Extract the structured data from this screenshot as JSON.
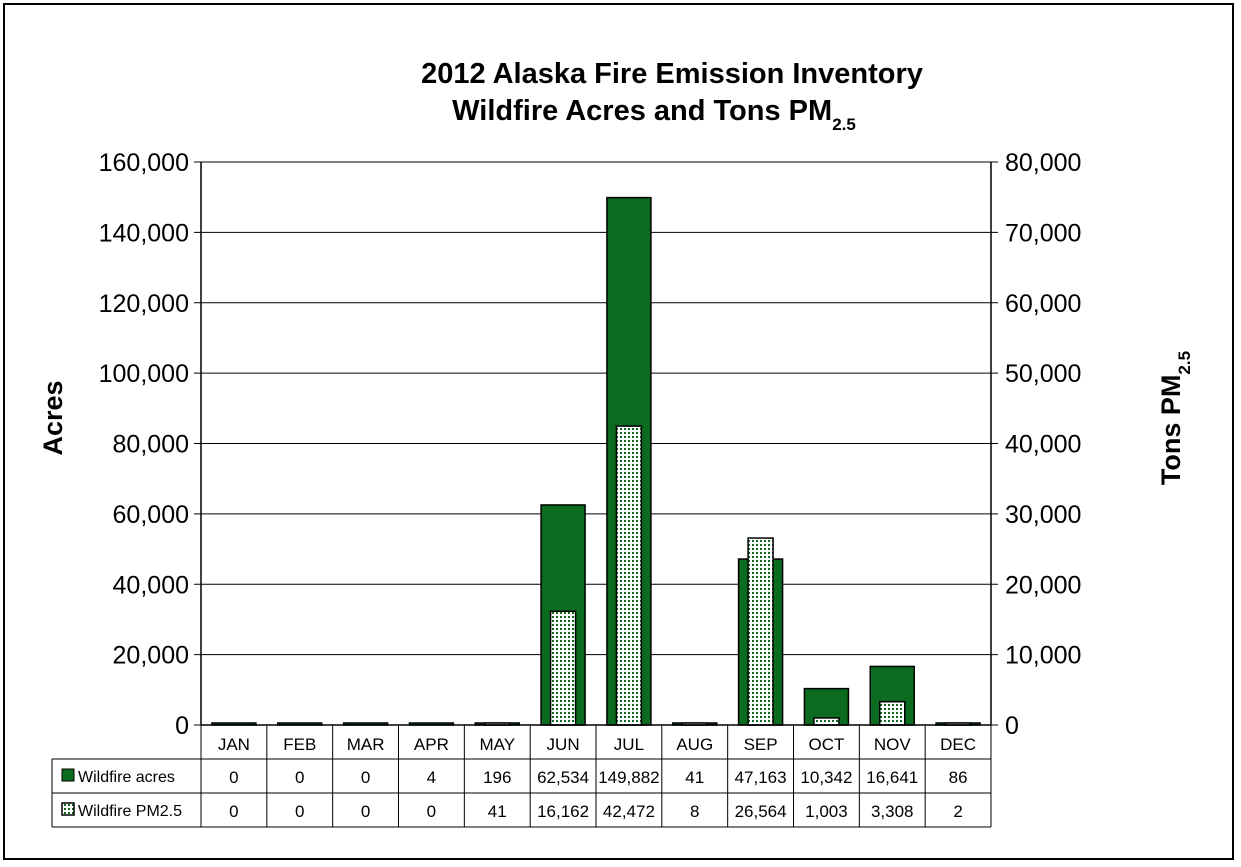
{
  "chart_data": {
    "type": "bar",
    "title_line1": "2012 Alaska Fire Emission Inventory",
    "title_line2": "Wildfire Acres and Tons PM",
    "title_subscript": "2.5",
    "ylabel_left": "Acres",
    "ylabel_right": "Tons PM",
    "ylabel_right_subscript": "2.5",
    "ylim_left": [
      0,
      160000
    ],
    "ylim_right": [
      0,
      80000
    ],
    "yticks_left": [
      "0",
      "20,000",
      "40,000",
      "60,000",
      "80,000",
      "100,000",
      "120,000",
      "140,000",
      "160,000"
    ],
    "yticks_right": [
      "0",
      "10,000",
      "20,000",
      "30,000",
      "40,000",
      "50,000",
      "60,000",
      "70,000",
      "80,000"
    ],
    "grid": true,
    "categories": [
      "JAN",
      "FEB",
      "MAR",
      "APR",
      "MAY",
      "JUN",
      "JUL",
      "AUG",
      "SEP",
      "OCT",
      "NOV",
      "DEC"
    ],
    "series": [
      {
        "name": "Wildfire acres",
        "axis": "left",
        "color": "#0b6b1f",
        "values": [
          0,
          0,
          0,
          4,
          196,
          62534,
          149882,
          41,
          47163,
          10342,
          16641,
          86
        ],
        "labels": [
          "0",
          "0",
          "0",
          "4",
          "196",
          "62,534",
          "149,882",
          "41",
          "47,163",
          "10,342",
          "16,641",
          "86"
        ]
      },
      {
        "name": "Wildfire PM2.5",
        "axis": "right",
        "color": "#e8f4e6",
        "pattern": "dotted",
        "values": [
          0,
          0,
          0,
          0,
          41,
          16162,
          42472,
          8,
          26564,
          1003,
          3308,
          2
        ],
        "labels": [
          "0",
          "0",
          "0",
          "0",
          "41",
          "16,162",
          "42,472",
          "8",
          "26,564",
          "1,003",
          "3,308",
          "2"
        ]
      }
    ]
  }
}
